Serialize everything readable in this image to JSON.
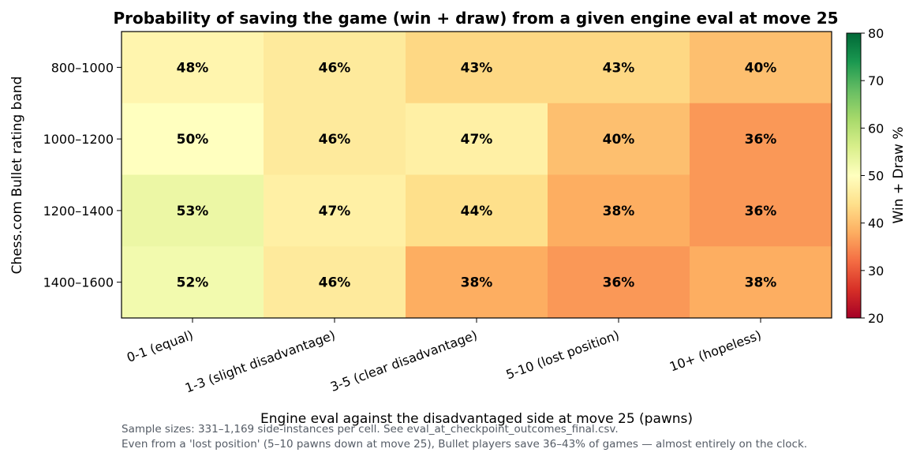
{
  "chart_data": {
    "type": "heatmap",
    "title": "Probability of saving the game (win + draw) from a given engine eval at move 25",
    "xlabel": "Engine eval against the disadvantaged side at move 25 (pawns)",
    "ylabel": "Chess.com Bullet rating band",
    "x_categories": [
      "0-1 (equal)",
      "1-3 (slight disadvantage)",
      "3-5 (clear disadvantage)",
      "5-10 (lost position)",
      "10+ (hopeless)"
    ],
    "y_categories": [
      "800–1000",
      "1000–1200",
      "1200–1400",
      "1400–1600"
    ],
    "values": [
      [
        48,
        46,
        43,
        43,
        40
      ],
      [
        50,
        46,
        47,
        40,
        36
      ],
      [
        53,
        47,
        44,
        38,
        36
      ],
      [
        52,
        46,
        38,
        36,
        38
      ]
    ],
    "value_suffix": "%",
    "colormap": "RdYlGn",
    "colorbar": {
      "label": "Win + Draw %",
      "range": [
        20,
        80
      ],
      "ticks": [
        20,
        30,
        40,
        50,
        60,
        70,
        80
      ]
    },
    "footnotes": [
      "Sample sizes: 331–1,169 side-instances per cell. See eval_at_checkpoint_outcomes_final.csv.",
      "Even from a 'lost position' (5–10 pawns down at move 25), Bullet players save 36–43% of games — almost entirely on the clock."
    ]
  }
}
